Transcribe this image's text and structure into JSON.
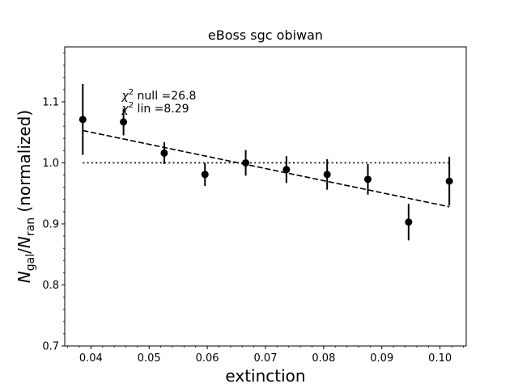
{
  "chart_data": {
    "type": "scatter",
    "title": "eBoss sgc obiwan",
    "xlabel": "extinction",
    "ylabel": {
      "main": "N",
      "sub1": "gal",
      "slash": "/",
      "sub2": "ran",
      "suffix": " (normalized)"
    },
    "xlim": [
      0.0355,
      0.1045
    ],
    "ylim": [
      0.7,
      1.19
    ],
    "x_ticks": [
      0.04,
      0.05,
      0.06,
      0.07,
      0.08,
      0.09,
      0.1
    ],
    "x_tick_labels": [
      "0.04",
      "0.05",
      "0.06",
      "0.07",
      "0.08",
      "0.09",
      "0.10"
    ],
    "y_ticks": [
      0.7,
      0.8,
      0.9,
      1.0,
      1.1
    ],
    "y_tick_labels": [
      "0.7",
      "0.8",
      "0.9",
      "1.0",
      "1.1"
    ],
    "grid": false,
    "series": [
      {
        "marker": "circle",
        "color": "#000000",
        "x": [
          0.0386,
          0.0456,
          0.0526,
          0.0596,
          0.0666,
          0.0736,
          0.0806,
          0.0876,
          0.0946,
          0.1016
        ],
        "y": [
          1.071,
          1.067,
          1.016,
          0.981,
          1.0,
          0.989,
          0.981,
          0.973,
          0.903,
          0.97
        ],
        "yerr": [
          0.058,
          0.022,
          0.018,
          0.019,
          0.021,
          0.022,
          0.025,
          0.025,
          0.03,
          0.04
        ]
      }
    ],
    "lines": [
      {
        "style": "dashed",
        "color": "#000000",
        "x": [
          0.0386,
          0.1016
        ],
        "y": [
          1.053,
          0.928
        ]
      },
      {
        "style": "dotted",
        "color": "#000000",
        "x": [
          0.0386,
          0.1016
        ],
        "y": [
          1.0,
          1.0
        ]
      }
    ],
    "annotations": [
      {
        "sym": "χ",
        "sup": "2",
        "text": " null =26.8",
        "x": 0.0453,
        "y": 1.104
      },
      {
        "sym": "χ",
        "sup": "2",
        "text": " lin =8.29",
        "x": 0.0453,
        "y": 1.083
      }
    ]
  }
}
